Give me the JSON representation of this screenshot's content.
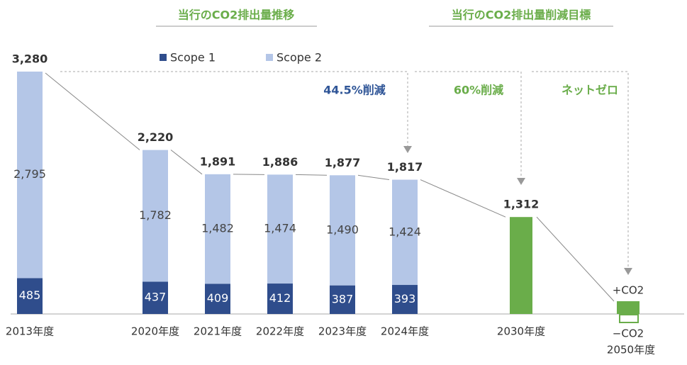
{
  "chart_data": {
    "type": "stacked_bar",
    "headers": [
      "当行のCO2排出量推移",
      "当行のCO2排出量削減目標"
    ],
    "categories": [
      "2013年度",
      "2020年度",
      "2021年度",
      "2022年度",
      "2023年度",
      "2024年度",
      "2030年度",
      "2050年度"
    ],
    "series": [
      {
        "name": "Scope 1",
        "color": "#2f4d8c",
        "values": [
          485,
          437,
          409,
          412,
          387,
          393,
          null,
          null
        ]
      },
      {
        "name": "Scope 2",
        "color": "#b4c6e7",
        "values": [
          2795,
          1782,
          1482,
          1474,
          1490,
          1424,
          null,
          null
        ],
        "value_labels": [
          "2,795",
          "1,782",
          "1,482",
          "1,474",
          "1,490",
          "1,424",
          null,
          null
        ]
      }
    ],
    "totals": {
      "values": [
        3280,
        2220,
        1891,
        1886,
        1877,
        1817,
        1312,
        null
      ],
      "value_labels": [
        "3,280",
        "2,220",
        "1,891",
        "1,886",
        "1,877",
        "1,817",
        "1,312",
        null
      ]
    },
    "target_color": "#6aad4a",
    "annotations": [
      {
        "text": "44.5%削減",
        "color": "#2f5597"
      },
      {
        "text": "60%削減",
        "color": "#6aad4a"
      },
      {
        "text": "ネットゼロ",
        "color": "#6aad4a"
      }
    ],
    "net_zero_labels": [
      "+CO2",
      "−CO2"
    ]
  }
}
